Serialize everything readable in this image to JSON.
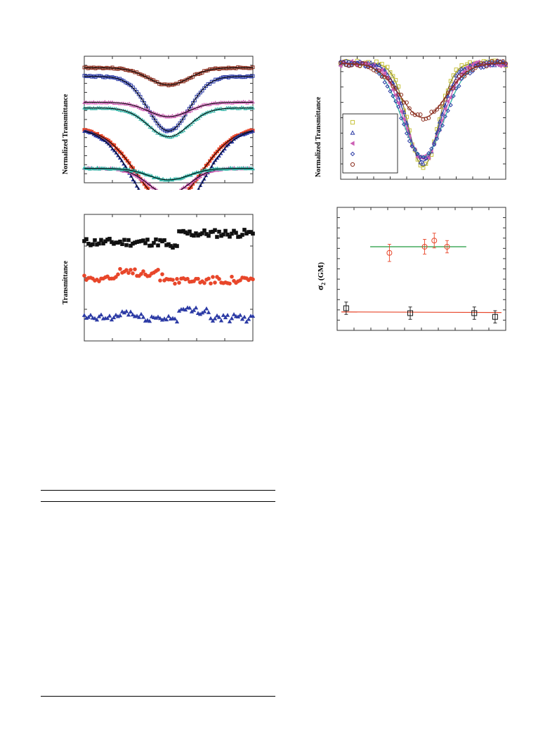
{
  "panels": {
    "a": {
      "ylabel": "Normalized Transmittance"
    },
    "b": {
      "ylabel": "Normalized Transmittance"
    },
    "c": {
      "ylabel": "Transmittance"
    },
    "d": {
      "ylabel_sym": "σ",
      "ylabel_sub": "2",
      "ylabel_unit": " (GM)"
    }
  },
  "colors": {
    "black": "#111111",
    "red": "#e8462a",
    "blue": "#2c3ba5",
    "pink": "#cc5fb4",
    "teal": "#33b3a6",
    "olive": "#c7c23a",
    "green": "#1f9a3c",
    "brown": "#8b2f1f"
  },
  "chart_data": [
    {
      "id": "a",
      "type": "line",
      "ylabel": "Normalized Transmittance",
      "xlabel": "",
      "series": [
        {
          "values_shape": "dip",
          "baseline": 1.0,
          "depth": 0.06
        },
        {
          "values_shape": "dip",
          "baseline": 0.97,
          "depth": 0.19
        },
        {
          "values_shape": "dip",
          "baseline": 0.88,
          "depth": 0.05
        },
        {
          "values_shape": "dip",
          "baseline": 0.86,
          "depth": 0.1
        },
        {
          "values_shape": "dip",
          "baseline": 0.79,
          "depth": 0.26
        },
        {
          "values_shape": "dip",
          "baseline": 0.79,
          "depth": 0.33
        },
        {
          "values_shape": "dip",
          "baseline": 0.65,
          "depth": 0.09
        },
        {
          "values_shape": "dip",
          "baseline": 0.65,
          "depth": 0.04
        }
      ]
    },
    {
      "id": "b",
      "type": "scatter",
      "ylabel": "Normalized Transmittance",
      "xlabel": "",
      "legend": "bottom-left",
      "series": [
        {
          "marker": "square",
          "depth": 0.95
        },
        {
          "marker": "triangle",
          "depth": 0.9
        },
        {
          "marker": "triangle-left",
          "depth": 0.88
        },
        {
          "marker": "diamond",
          "depth": 0.86
        },
        {
          "marker": "circle",
          "depth": 0.5
        }
      ]
    },
    {
      "id": "c",
      "type": "scatter",
      "ylabel": "Transmittance",
      "xlabel": "",
      "series": [
        {
          "marker": "square",
          "level": 0.78
        },
        {
          "marker": "circle",
          "level": 0.5
        },
        {
          "marker": "triangle",
          "level": 0.18
        }
      ]
    },
    {
      "id": "d",
      "type": "scatter",
      "ylabel": "σ2 (GM)",
      "xlabel": "",
      "series": [
        {
          "marker": "circle",
          "x": [
            0.3,
            0.52,
            0.58,
            0.66
          ],
          "y": [
            0.63,
            0.68,
            0.73,
            0.68
          ],
          "err": [
            0.07,
            0.06,
            0.06,
            0.05
          ]
        },
        {
          "marker": "square",
          "x": [
            0.03,
            0.43,
            0.83,
            0.96
          ],
          "y": [
            0.18,
            0.14,
            0.14,
            0.11
          ],
          "err": [
            0.05,
            0.05,
            0.05,
            0.05
          ]
        }
      ],
      "fits": [
        {
          "x": [
            0.18,
            0.78
          ],
          "y": [
            0.68,
            0.68
          ]
        },
        {
          "x": [
            0.0,
            1.0
          ],
          "y": [
            0.15,
            0.145
          ]
        }
      ]
    }
  ]
}
